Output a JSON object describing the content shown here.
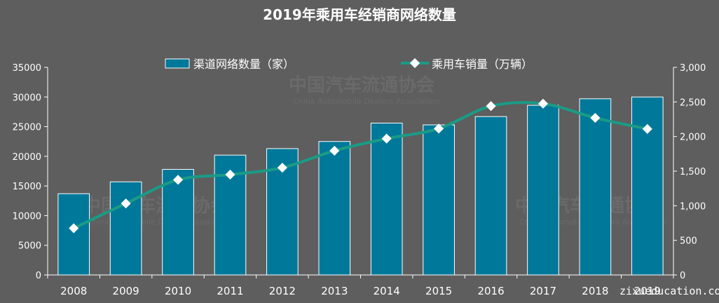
{
  "watermark": {
    "name_cn": "中国汽车流通协会",
    "name_en": "China Automobile Dealers Association",
    "site": "zixueducation.com"
  },
  "colors": {
    "background": "#5e5e5e",
    "bar": "#00789a",
    "bar_edge": "#ffffff",
    "line": "#1a9b86",
    "marker": "#ffffff"
  },
  "chart_data": {
    "type": "bar",
    "title": "2019年乘用车经销商网络数量",
    "categories": [
      "2008",
      "2009",
      "2010",
      "2011",
      "2012",
      "2013",
      "2014",
      "2015",
      "2016",
      "2017",
      "2018",
      "2019"
    ],
    "series": [
      {
        "name": "渠道网络数量（家）",
        "type": "bar",
        "axis": "left",
        "values": [
          13700,
          15700,
          17800,
          20200,
          21300,
          22500,
          25600,
          25300,
          26700,
          28600,
          29700,
          30000
        ]
      },
      {
        "name": "乘用车销量（万辆）",
        "type": "line",
        "axis": "right",
        "values": [
          675,
          1033,
          1375,
          1450,
          1550,
          1795,
          1970,
          2115,
          2440,
          2475,
          2270,
          2110
        ]
      }
    ],
    "y_left": {
      "min": 0,
      "max": 35000,
      "step": 5000,
      "tick_labels": [
        "0",
        "5000",
        "10000",
        "15000",
        "20000",
        "25000",
        "30000",
        "35000"
      ]
    },
    "y_right": {
      "min": 0,
      "max": 3000,
      "step": 500,
      "tick_labels": [
        "0",
        "500",
        "1,000",
        "1,500",
        "2,000",
        "2,500",
        "3,000"
      ]
    },
    "grid": false,
    "legend": "top-center"
  }
}
